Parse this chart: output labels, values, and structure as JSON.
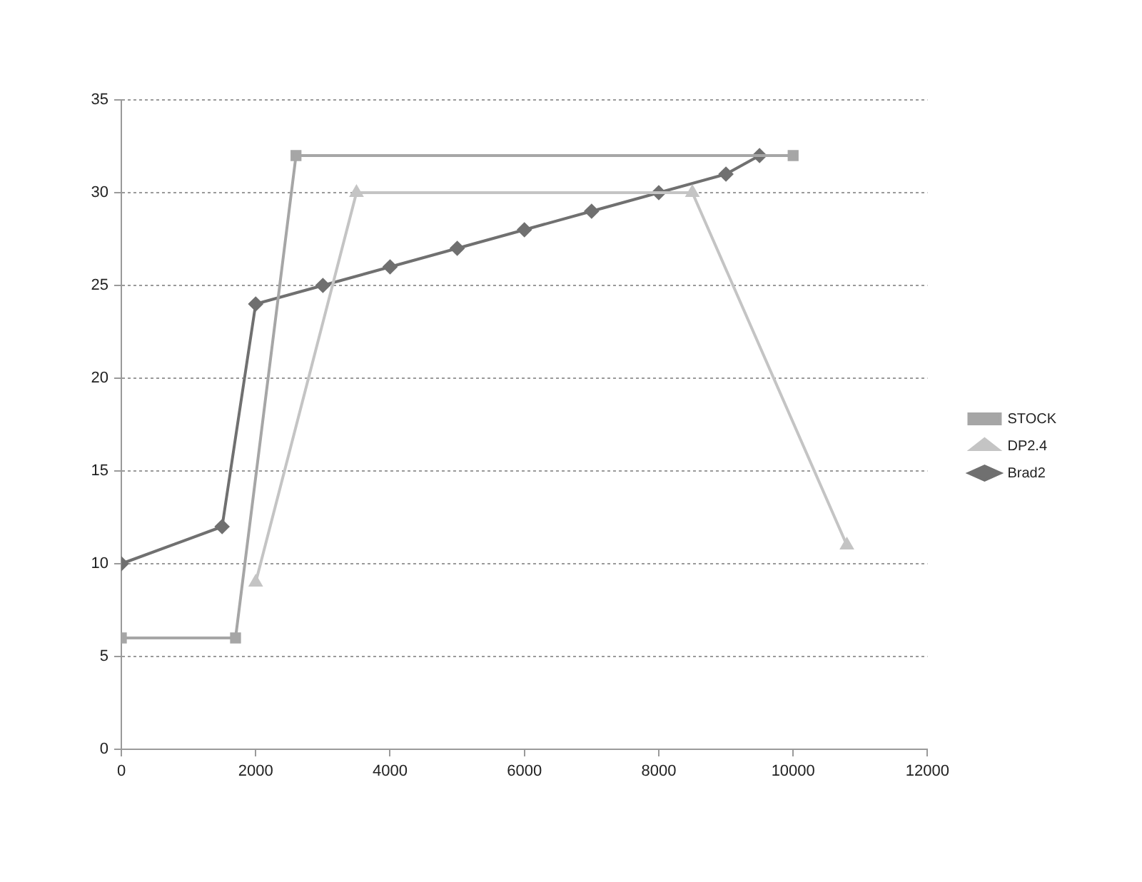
{
  "chart_data": {
    "type": "line",
    "xlim": [
      0,
      12000
    ],
    "xticks": [
      0,
      2000,
      4000,
      6000,
      8000,
      10000,
      12000
    ],
    "ylim": [
      0,
      35
    ],
    "yticks": [
      0,
      5,
      10,
      15,
      20,
      25,
      30,
      35
    ],
    "grid": "y",
    "legend": "right",
    "line_style": "solid",
    "series": [
      {
        "name": "STOCK",
        "color": "#a6a6a6",
        "marker": "square",
        "x": [
          0,
          1700,
          2600,
          10000
        ],
        "values": [
          6,
          6,
          32,
          32
        ]
      },
      {
        "name": "DP2.4",
        "color": "#c4c4c4",
        "marker": "triangle",
        "x": [
          2000,
          3500,
          8500,
          10800
        ],
        "values": [
          9,
          30,
          30,
          11
        ]
      },
      {
        "name": "Brad2",
        "color": "#707070",
        "marker": "diamond",
        "x": [
          0,
          1500,
          2000,
          3000,
          4000,
          5000,
          6000,
          7000,
          8000,
          9000,
          9500
        ],
        "values": [
          10,
          12,
          24,
          25,
          26,
          27,
          28,
          29,
          30,
          31,
          32
        ]
      }
    ]
  }
}
